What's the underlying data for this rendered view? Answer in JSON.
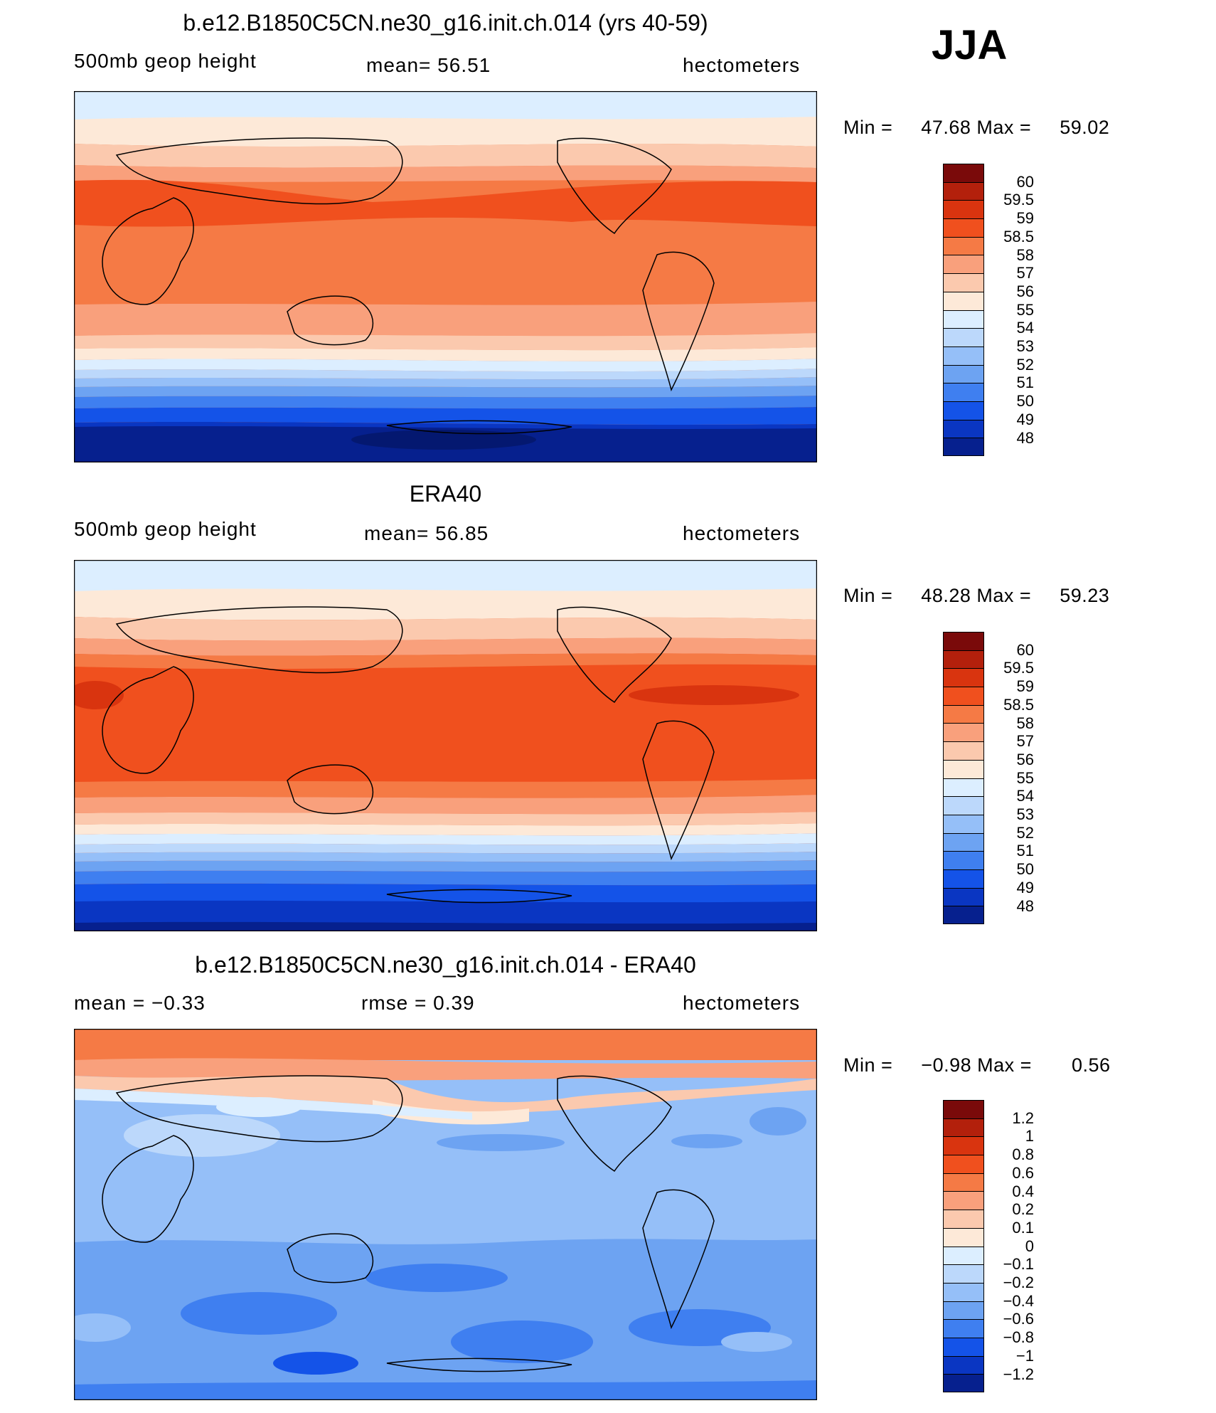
{
  "season": "JJA",
  "panels": [
    {
      "title": "b.e12.B1850C5CN.ne30_g16.init.ch.014 (yrs 40-59)",
      "left_label": "500mb  geop  height",
      "center_label": "mean=   56.51",
      "right_label": "hectometers",
      "min_label": "Min  =",
      "min_value": "47.68",
      "max_label": "Max  =",
      "max_value": "59.02",
      "map_image": "world-map-500mb-geopotential-height-model",
      "colorbar_labels": [
        "60",
        "59.5",
        "59",
        "58.5",
        "58",
        "57",
        "56",
        "55",
        "54",
        "53",
        "52",
        "51",
        "50",
        "49",
        "48"
      ]
    },
    {
      "title": "ERA40",
      "left_label": "500mb  geop  height",
      "center_label": "mean=   56.85",
      "right_label": "hectometers",
      "min_label": "Min  =",
      "min_value": "48.28",
      "max_label": "Max  =",
      "max_value": "59.23",
      "map_image": "world-map-500mb-geopotential-height-era40",
      "colorbar_labels": [
        "60",
        "59.5",
        "59",
        "58.5",
        "58",
        "57",
        "56",
        "55",
        "54",
        "53",
        "52",
        "51",
        "50",
        "49",
        "48"
      ]
    },
    {
      "title": "b.e12.B1850C5CN.ne30_g16.init.ch.014 - ERA40",
      "left_label": "mean  =    −0.33",
      "center_label": "rmse  =     0.39",
      "right_label": "hectometers",
      "min_label": "Min  =",
      "min_value": "−0.98",
      "max_label": "Max  =",
      "max_value": "0.56",
      "map_image": "world-map-500mb-geopotential-height-difference",
      "colorbar_labels": [
        "1.2",
        "1",
        "0.8",
        "0.6",
        "0.4",
        "0.2",
        "0.1",
        "0",
        "−0.1",
        "−0.2",
        "−0.4",
        "−0.6",
        "−0.8",
        "−1",
        "−1.2"
      ]
    }
  ],
  "colors": {
    "scale": [
      "#7a0a0a",
      "#b3200c",
      "#d9340f",
      "#f0501e",
      "#f57a45",
      "#f9a07c",
      "#fbc9ae",
      "#fde9d8",
      "#dceeff",
      "#bcd8fb",
      "#95bff8",
      "#6da3f2",
      "#3f7ff0",
      "#1453e8",
      "#0a36c2",
      "#06208e"
    ]
  }
}
